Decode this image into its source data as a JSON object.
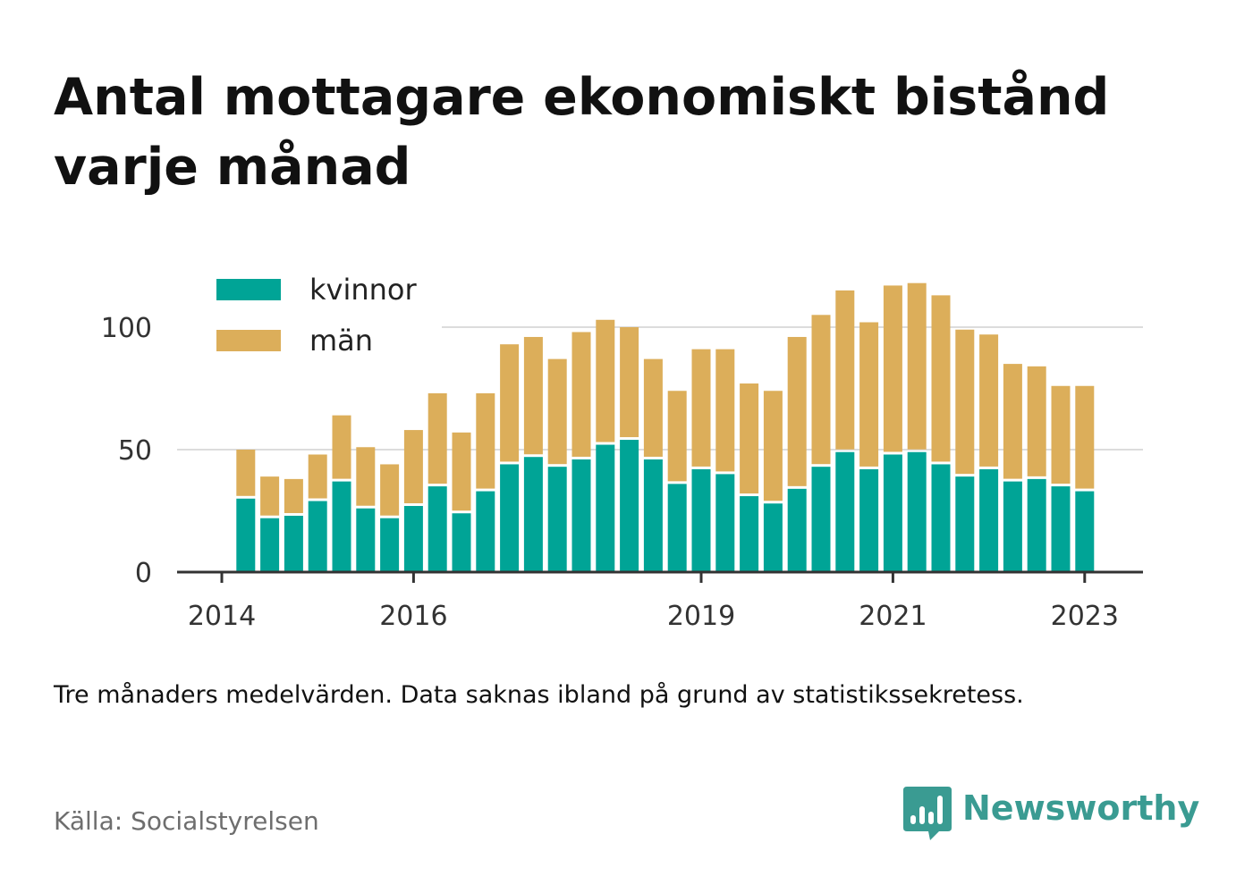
{
  "title": "Antal mottagare ekonomiskt bistånd varje månad",
  "note": "Tre månaders medelvärden. Data saknas ibland på grund av statistikssekretess.",
  "source": "Källa: Socialstyrelsen",
  "brand": {
    "name": "Newsworthy",
    "icon": "bar-chart-speech-bubble-icon",
    "color": "#3a9b92"
  },
  "chart_data": {
    "type": "bar",
    "stacked": true,
    "grid": true,
    "legend_position": "top-left",
    "ylim": [
      0,
      120
    ],
    "yticks": [
      0,
      50,
      100
    ],
    "xticks": [
      "2014",
      "2016",
      "2019",
      "2021",
      "2023"
    ],
    "x": [
      "2014-04",
      "2014-07",
      "2014-10",
      "2015-01",
      "2015-04",
      "2015-07",
      "2015-10",
      "2016-01",
      "2016-04",
      "2016-07",
      "2016-10",
      "2017-01",
      "2017-04",
      "2017-07",
      "2017-10",
      "2018-01",
      "2018-04",
      "2018-07",
      "2018-10",
      "2019-01",
      "2019-04",
      "2019-07",
      "2019-10",
      "2020-01",
      "2020-04",
      "2020-07",
      "2020-10",
      "2021-01",
      "2021-04",
      "2021-07",
      "2021-10",
      "2022-01",
      "2022-04",
      "2022-07",
      "2022-10",
      "2023-01"
    ],
    "series": [
      {
        "name": "kvinnor",
        "color": "#00a496",
        "values": [
          30,
          22,
          23,
          29,
          37,
          26,
          22,
          27,
          35,
          24,
          33,
          44,
          47,
          43,
          46,
          52,
          54,
          46,
          36,
          42,
          40,
          31,
          28,
          34,
          43,
          49,
          42,
          48,
          49,
          44,
          39,
          42,
          37,
          38,
          35,
          33
        ]
      },
      {
        "name": "män",
        "color": "#dcae5a",
        "values": [
          20,
          17,
          15,
          19,
          27,
          25,
          22,
          31,
          38,
          33,
          40,
          49,
          49,
          44,
          52,
          51,
          46,
          41,
          38,
          49,
          51,
          46,
          46,
          62,
          62,
          66,
          60,
          69,
          69,
          69,
          60,
          55,
          48,
          46,
          41,
          43
        ]
      }
    ]
  }
}
